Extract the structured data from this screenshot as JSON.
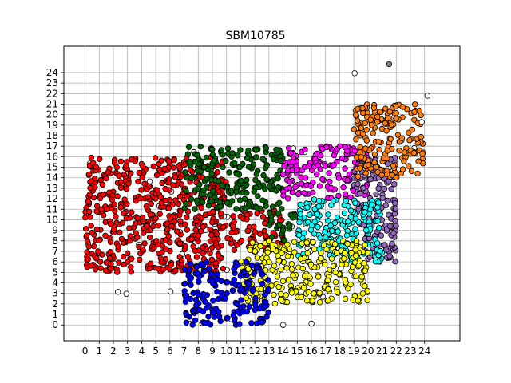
{
  "chart_data": {
    "type": "scatter",
    "title": "SBM10785",
    "xlabel": "",
    "ylabel": "",
    "xlim": [
      -1.5,
      26.5
    ],
    "ylim": [
      -1.5,
      26.5
    ],
    "x_ticks": [
      0,
      1,
      2,
      3,
      4,
      5,
      6,
      7,
      8,
      9,
      10,
      11,
      12,
      13,
      14,
      15,
      16,
      17,
      18,
      19,
      20,
      21,
      22,
      23,
      24
    ],
    "y_ticks": [
      0,
      1,
      2,
      3,
      4,
      5,
      6,
      7,
      8,
      9,
      10,
      11,
      12,
      13,
      14,
      15,
      16,
      17,
      18,
      19,
      20,
      21,
      22,
      23,
      24
    ],
    "grid": true,
    "cluster_colors": {
      "red": "#ff0000",
      "green": "#006400",
      "magenta": "#ff00ff",
      "orange": "#ff7f0e",
      "purple": "#9467bd",
      "cyan": "#00ffff",
      "yellow": "#ffff00",
      "blue": "#0000ff",
      "unassigned": "#ffffff",
      "outlier": "#808080"
    },
    "regions": [
      {
        "cluster": "red",
        "x": [
          0,
          10
        ],
        "y": [
          5,
          16
        ],
        "density": 5
      },
      {
        "cluster": "red",
        "x": [
          10,
          14
        ],
        "y": [
          7,
          11
        ],
        "density": 5
      },
      {
        "cluster": "green",
        "x": [
          7,
          14
        ],
        "y": [
          11,
          17
        ],
        "density": 5
      },
      {
        "cluster": "green",
        "x": [
          13,
          15
        ],
        "y": [
          8,
          11
        ],
        "density": 4
      },
      {
        "cluster": "magenta",
        "x": [
          14,
          20
        ],
        "y": [
          12,
          17
        ],
        "density": 5
      },
      {
        "cluster": "purple",
        "x": [
          19,
          22
        ],
        "y": [
          6,
          16
        ],
        "density": 5
      },
      {
        "cluster": "cyan",
        "x": [
          15,
          21
        ],
        "y": [
          6,
          12
        ],
        "density": 5
      },
      {
        "cluster": "orange",
        "x": [
          19,
          24
        ],
        "y": [
          14,
          21
        ],
        "density": 5
      },
      {
        "cluster": "yellow",
        "x": [
          11,
          20
        ],
        "y": [
          2,
          8
        ],
        "density": 5
      },
      {
        "cluster": "blue",
        "x": [
          7,
          13
        ],
        "y": [
          0,
          6
        ],
        "density": 5
      },
      {
        "cluster": "unassigned",
        "x": [
          0,
          24
        ],
        "y": [
          0,
          24
        ],
        "density": 0.15
      }
    ],
    "special_points": [
      {
        "cluster": "outlier",
        "x": 21.5,
        "y": 24.8
      },
      {
        "cluster": "unassigned",
        "x": 14,
        "y": 0
      },
      {
        "cluster": "unassigned",
        "x": 24.2,
        "y": 21.8
      },
      {
        "cluster": "unassigned",
        "x": 23.8,
        "y": 19.3
      }
    ]
  }
}
